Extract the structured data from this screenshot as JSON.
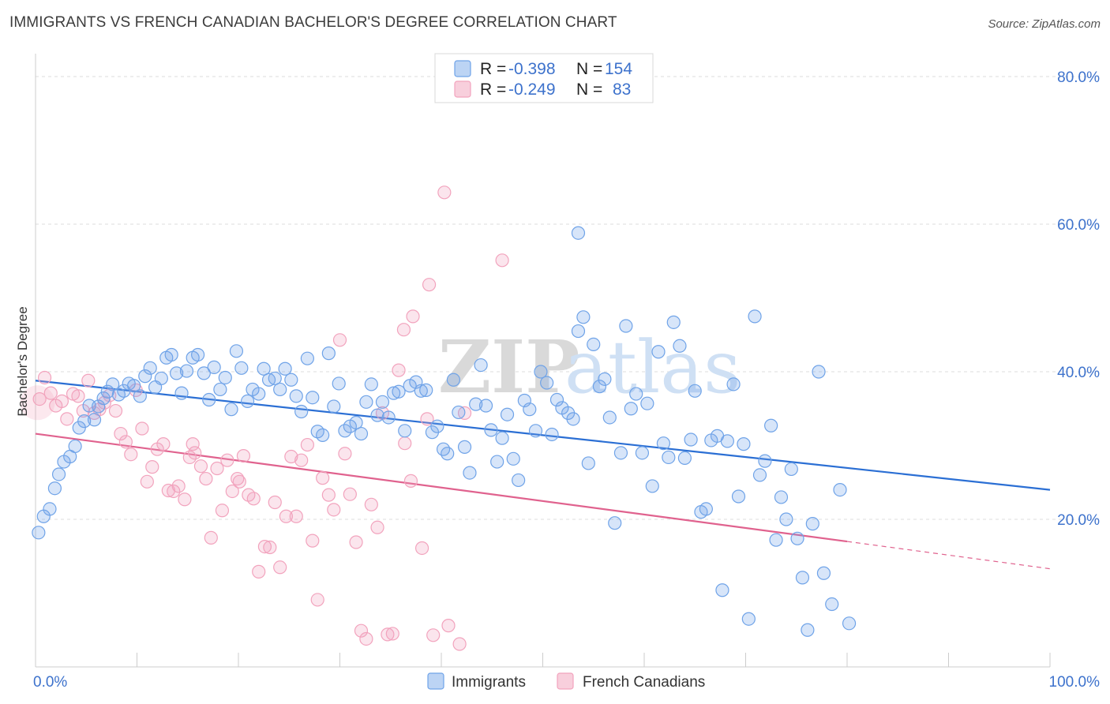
{
  "title": "IMMIGRANTS VS FRENCH CANADIAN BACHELOR'S DEGREE CORRELATION CHART",
  "source": "Source: ZipAtlas.com",
  "watermark": {
    "zip": "ZIP",
    "atlas": "atlas"
  },
  "chart_data": {
    "type": "scatter",
    "ylabel": "Bachelor's Degree",
    "xlim": [
      0,
      100
    ],
    "ylim": [
      0,
      80
    ],
    "x_tick_labels": [
      {
        "value": 0,
        "label": "0.0%"
      },
      {
        "value": 100,
        "label": "100.0%"
      }
    ],
    "y_tick_labels": [
      {
        "value": 20,
        "label": "20.0%"
      },
      {
        "value": 40,
        "label": "40.0%"
      },
      {
        "value": 60,
        "label": "60.0%"
      },
      {
        "value": 80,
        "label": "80.0%"
      }
    ],
    "grid": true,
    "legend_position": "top-center",
    "colors": {
      "immigrants": "#6fa3e8",
      "immigrants_line": "#2b6fd4",
      "french": "#f2a3bd",
      "french_line": "#e0628e"
    },
    "stats": [
      {
        "r_label": "R =",
        "r_value": "-0.398",
        "n_label": "N =",
        "n_value": "154"
      },
      {
        "r_label": "R =",
        "r_value": "-0.249",
        "n_label": "N =",
        "n_value": "83"
      }
    ],
    "series": [
      {
        "name": "Immigrants",
        "trend": {
          "x0": 0,
          "y0": 38.8,
          "x1": 100,
          "y1": 24.0
        },
        "points": [
          [
            0.3,
            18.2
          ],
          [
            0.8,
            20.4
          ],
          [
            1.4,
            21.4
          ],
          [
            1.9,
            24.2
          ],
          [
            2.3,
            26.1
          ],
          [
            2.8,
            27.8
          ],
          [
            3.4,
            28.5
          ],
          [
            3.9,
            29.9
          ],
          [
            4.3,
            32.4
          ],
          [
            4.8,
            33.3
          ],
          [
            5.3,
            35.4
          ],
          [
            5.8,
            33.5
          ],
          [
            6.2,
            35.3
          ],
          [
            6.7,
            36.4
          ],
          [
            7.1,
            37.3
          ],
          [
            7.6,
            38.3
          ],
          [
            8.2,
            36.9
          ],
          [
            8.7,
            37.4
          ],
          [
            9.2,
            38.4
          ],
          [
            9.7,
            38.1
          ],
          [
            10.3,
            36.7
          ],
          [
            10.8,
            39.4
          ],
          [
            11.3,
            40.5
          ],
          [
            11.8,
            37.9
          ],
          [
            12.4,
            39.1
          ],
          [
            12.9,
            41.9
          ],
          [
            13.4,
            42.3
          ],
          [
            13.9,
            39.8
          ],
          [
            14.4,
            37.1
          ],
          [
            14.9,
            40.1
          ],
          [
            15.5,
            41.9
          ],
          [
            16.0,
            42.3
          ],
          [
            16.6,
            39.8
          ],
          [
            17.1,
            36.2
          ],
          [
            17.6,
            40.6
          ],
          [
            18.2,
            37.6
          ],
          [
            18.7,
            39.2
          ],
          [
            19.3,
            34.9
          ],
          [
            19.8,
            42.8
          ],
          [
            20.3,
            40.5
          ],
          [
            20.9,
            36.0
          ],
          [
            21.4,
            37.6
          ],
          [
            22.0,
            37.0
          ],
          [
            22.5,
            40.4
          ],
          [
            23.0,
            38.9
          ],
          [
            23.6,
            39.1
          ],
          [
            24.1,
            37.6
          ],
          [
            24.6,
            40.4
          ],
          [
            25.2,
            38.9
          ],
          [
            25.7,
            36.7
          ],
          [
            26.2,
            34.6
          ],
          [
            26.8,
            41.8
          ],
          [
            27.3,
            36.5
          ],
          [
            27.8,
            31.9
          ],
          [
            28.3,
            31.4
          ],
          [
            28.9,
            42.5
          ],
          [
            29.4,
            35.3
          ],
          [
            29.9,
            38.4
          ],
          [
            30.5,
            32.0
          ],
          [
            31.0,
            32.6
          ],
          [
            31.6,
            33.1
          ],
          [
            32.1,
            31.6
          ],
          [
            32.6,
            35.9
          ],
          [
            33.1,
            38.3
          ],
          [
            33.7,
            34.1
          ],
          [
            34.2,
            35.9
          ],
          [
            34.8,
            33.8
          ],
          [
            35.3,
            37.1
          ],
          [
            35.8,
            37.3
          ],
          [
            36.4,
            32.0
          ],
          [
            36.9,
            38.1
          ],
          [
            37.5,
            38.6
          ],
          [
            38.0,
            37.4
          ],
          [
            38.5,
            37.5
          ],
          [
            39.1,
            31.8
          ],
          [
            39.6,
            32.6
          ],
          [
            40.2,
            29.5
          ],
          [
            40.6,
            28.9
          ],
          [
            41.2,
            38.9
          ],
          [
            41.7,
            34.5
          ],
          [
            42.3,
            29.8
          ],
          [
            42.8,
            26.3
          ],
          [
            43.4,
            35.6
          ],
          [
            43.9,
            40.9
          ],
          [
            44.4,
            35.4
          ],
          [
            44.9,
            32.1
          ],
          [
            45.5,
            27.8
          ],
          [
            46.0,
            31.0
          ],
          [
            46.5,
            34.2
          ],
          [
            47.1,
            28.2
          ],
          [
            47.6,
            25.3
          ],
          [
            48.2,
            36.1
          ],
          [
            48.7,
            34.9
          ],
          [
            49.3,
            32.0
          ],
          [
            49.8,
            40.0
          ],
          [
            50.4,
            38.5
          ],
          [
            50.9,
            31.5
          ],
          [
            51.4,
            36.2
          ],
          [
            51.9,
            35.1
          ],
          [
            52.5,
            34.4
          ],
          [
            53.0,
            33.6
          ],
          [
            53.5,
            45.5
          ],
          [
            54.0,
            47.4
          ],
          [
            54.5,
            27.6
          ],
          [
            55.0,
            43.7
          ],
          [
            55.6,
            38.0
          ],
          [
            56.1,
            39.0
          ],
          [
            56.6,
            33.8
          ],
          [
            57.1,
            19.5
          ],
          [
            57.7,
            29.0
          ],
          [
            58.2,
            46.2
          ],
          [
            58.7,
            35.0
          ],
          [
            59.2,
            37.0
          ],
          [
            59.8,
            29.0
          ],
          [
            60.3,
            35.7
          ],
          [
            60.8,
            24.5
          ],
          [
            61.4,
            42.7
          ],
          [
            61.9,
            30.3
          ],
          [
            62.4,
            28.4
          ],
          [
            62.9,
            46.7
          ],
          [
            63.5,
            43.5
          ],
          [
            64.0,
            28.3
          ],
          [
            64.6,
            30.8
          ],
          [
            65.0,
            37.4
          ],
          [
            65.6,
            21.0
          ],
          [
            66.1,
            21.4
          ],
          [
            66.6,
            30.7
          ],
          [
            67.2,
            31.3
          ],
          [
            67.7,
            10.4
          ],
          [
            68.2,
            30.6
          ],
          [
            68.8,
            38.3
          ],
          [
            69.3,
            23.1
          ],
          [
            69.8,
            30.2
          ],
          [
            70.3,
            6.5
          ],
          [
            70.9,
            47.5
          ],
          [
            71.4,
            26.0
          ],
          [
            71.9,
            27.9
          ],
          [
            72.5,
            32.7
          ],
          [
            73.0,
            17.2
          ],
          [
            73.5,
            23.0
          ],
          [
            74.0,
            20.0
          ],
          [
            74.5,
            26.8
          ],
          [
            75.1,
            17.4
          ],
          [
            75.6,
            12.1
          ],
          [
            76.1,
            5.0
          ],
          [
            76.6,
            19.4
          ],
          [
            77.2,
            40.0
          ],
          [
            77.7,
            12.7
          ],
          [
            78.5,
            8.5
          ],
          [
            79.3,
            24.0
          ],
          [
            80.2,
            5.9
          ],
          [
            53.5,
            58.8
          ]
        ]
      },
      {
        "name": "French Canadians",
        "trend": {
          "x0": 0,
          "y0": 31.6,
          "x1": 80,
          "y1": 17.0
        },
        "trend_dashed": {
          "x0": 80,
          "y0": 17.0,
          "x1": 100,
          "y1": 13.3
        },
        "points": [
          [
            0.4,
            36.3
          ],
          [
            0.9,
            39.2
          ],
          [
            1.5,
            37.1
          ],
          [
            2.0,
            35.4
          ],
          [
            2.6,
            36.0
          ],
          [
            3.1,
            33.6
          ],
          [
            3.7,
            37.0
          ],
          [
            4.2,
            36.7
          ],
          [
            4.7,
            34.7
          ],
          [
            5.2,
            38.8
          ],
          [
            5.8,
            34.4
          ],
          [
            6.3,
            34.9
          ],
          [
            6.8,
            35.8
          ],
          [
            7.3,
            36.8
          ],
          [
            7.9,
            34.7
          ],
          [
            8.4,
            31.6
          ],
          [
            8.9,
            30.5
          ],
          [
            9.4,
            28.8
          ],
          [
            9.9,
            37.5
          ],
          [
            10.5,
            32.3
          ],
          [
            11.0,
            25.1
          ],
          [
            11.5,
            27.1
          ],
          [
            12.0,
            29.5
          ],
          [
            12.6,
            30.2
          ],
          [
            13.1,
            23.9
          ],
          [
            13.6,
            23.8
          ],
          [
            14.1,
            24.5
          ],
          [
            14.7,
            22.7
          ],
          [
            15.2,
            28.4
          ],
          [
            15.7,
            29.0
          ],
          [
            16.3,
            27.2
          ],
          [
            16.8,
            25.5
          ],
          [
            17.3,
            17.5
          ],
          [
            17.9,
            26.9
          ],
          [
            18.4,
            21.2
          ],
          [
            18.9,
            28.0
          ],
          [
            19.4,
            23.8
          ],
          [
            19.9,
            25.5
          ],
          [
            20.5,
            28.6
          ],
          [
            21.0,
            23.3
          ],
          [
            21.5,
            22.8
          ],
          [
            22.0,
            12.9
          ],
          [
            22.6,
            16.3
          ],
          [
            23.1,
            16.2
          ],
          [
            23.6,
            22.3
          ],
          [
            24.1,
            13.5
          ],
          [
            24.7,
            20.4
          ],
          [
            25.2,
            28.5
          ],
          [
            25.7,
            20.4
          ],
          [
            26.2,
            28.0
          ],
          [
            26.8,
            30.1
          ],
          [
            27.3,
            17.1
          ],
          [
            27.8,
            9.1
          ],
          [
            28.3,
            25.6
          ],
          [
            28.9,
            23.3
          ],
          [
            29.4,
            21.3
          ],
          [
            30.0,
            44.3
          ],
          [
            30.5,
            28.9
          ],
          [
            31.0,
            23.4
          ],
          [
            31.6,
            16.9
          ],
          [
            32.1,
            4.9
          ],
          [
            32.6,
            3.8
          ],
          [
            33.1,
            22.0
          ],
          [
            33.7,
            18.9
          ],
          [
            34.2,
            34.4
          ],
          [
            34.7,
            4.4
          ],
          [
            35.2,
            4.5
          ],
          [
            35.8,
            40.2
          ],
          [
            36.4,
            30.3
          ],
          [
            37.0,
            25.2
          ],
          [
            38.1,
            16.1
          ],
          [
            38.6,
            33.6
          ],
          [
            39.2,
            4.3
          ],
          [
            40.7,
            5.6
          ],
          [
            41.8,
            3.1
          ],
          [
            42.3,
            34.4
          ],
          [
            46.0,
            55.1
          ],
          [
            40.3,
            64.3
          ],
          [
            38.8,
            51.8
          ],
          [
            37.2,
            47.5
          ],
          [
            36.3,
            45.7
          ],
          [
            15.5,
            30.2
          ],
          [
            20.1,
            25.1
          ]
        ]
      }
    ]
  },
  "bottom_legend": [
    "Immigrants",
    "French Canadians"
  ]
}
